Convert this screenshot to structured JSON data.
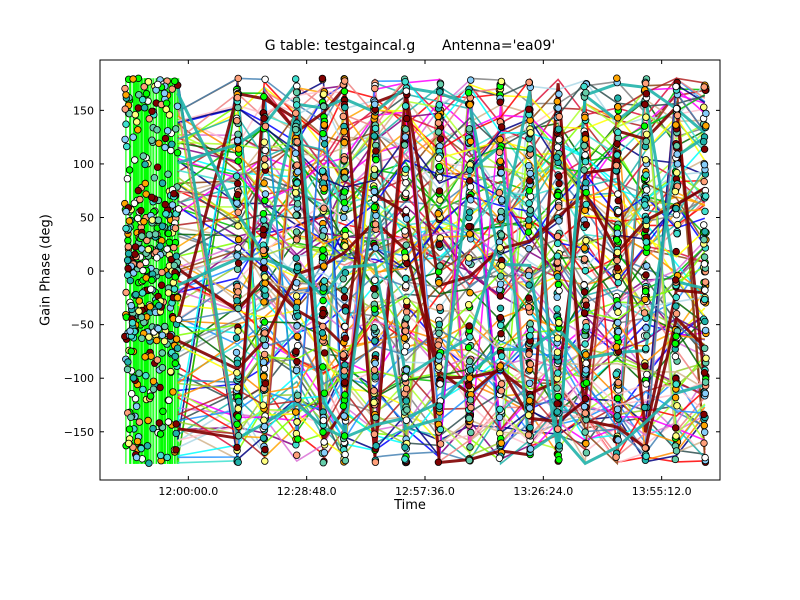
{
  "chart_data": {
    "type": "scatter",
    "title_left": "G table: testgaincal.g",
    "title_right": "Antenna='ea09'",
    "xlabel": "Time",
    "ylabel": "Gain Phase (deg)",
    "x_ticks": [
      "12:00:00.0",
      "12:28:48.0",
      "12:57:36.0",
      "13:26:24.0",
      "13:55:12.0"
    ],
    "x_tick_minutes": [
      0,
      28.8,
      57.6,
      86.4,
      115.2
    ],
    "xlim_minutes": [
      -21.5,
      129.4
    ],
    "y_ticks": [
      -150,
      -100,
      -50,
      0,
      50,
      100,
      150
    ],
    "ylim": [
      -195,
      197
    ],
    "scan_blocks_minutes": [
      [
        -15.5,
        -2.3
      ],
      [
        11.7,
        12.3
      ],
      [
        18.2,
        18.8
      ],
      [
        26.1,
        26.7
      ],
      [
        32.6,
        33.2
      ],
      [
        37.7,
        38.3
      ],
      [
        45.1,
        45.7
      ],
      [
        52.6,
        53.2
      ],
      [
        60.8,
        61.4
      ],
      [
        68.2,
        68.8
      ],
      [
        75.7,
        76.3
      ],
      [
        82.8,
        83.4
      ],
      [
        89.7,
        90.3
      ],
      [
        96.3,
        96.9
      ],
      [
        104.1,
        104.7
      ],
      [
        111.0,
        111.6
      ],
      [
        118.5,
        119.1
      ],
      [
        125.4,
        126.0
      ]
    ],
    "phase_range": [
      -180,
      180
    ],
    "line_colors": [
      "#ff0000",
      "#00c000",
      "#0000ff",
      "#ffa500",
      "#800080",
      "#00ffff",
      "#ff00ff",
      "#8b4513",
      "#808080",
      "#006400",
      "#add8e6",
      "#ffff00",
      "#f08080",
      "#2f4f4f",
      "#da70d6",
      "#adff2f",
      "#1e90ff",
      "#d2b48c",
      "#20b2aa",
      "#000080",
      "#b22222",
      "#7fff00",
      "#ffc0cb",
      "#4682b4",
      "#ff8c00",
      "#9acd32",
      "#dc143c",
      "#40e0d0"
    ],
    "marker_colors": [
      "#ffa07a",
      "#00ff00",
      "#800000",
      "#87cefa",
      "#40e0d0",
      "#ffffff",
      "#20b2aa",
      "#ffff80",
      "#ffa500",
      "#66cdaa"
    ],
    "thick_series_colors": [
      "#800000",
      "#20b2aa"
    ],
    "grid": false,
    "legend": "none"
  }
}
